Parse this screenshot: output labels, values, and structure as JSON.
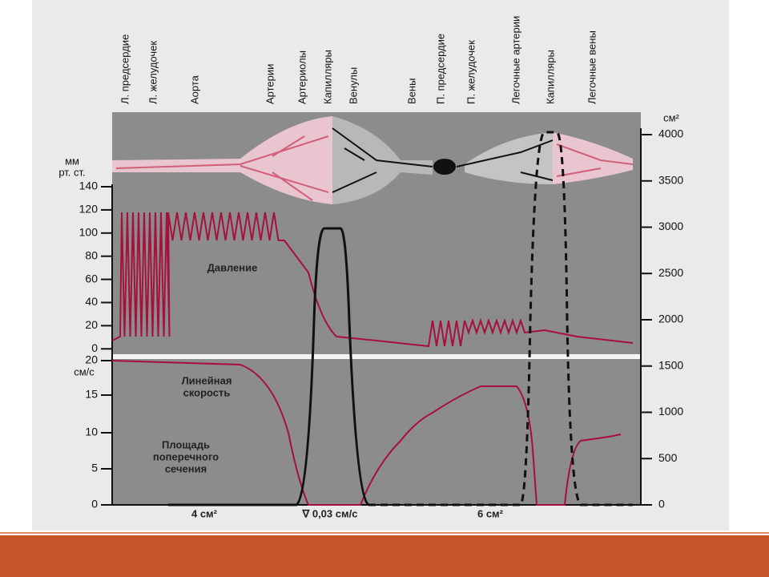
{
  "header_labels": [
    "Л. предсердие",
    "Л. желудочек",
    "Аорта",
    "Артерии",
    "Артериолы",
    "Капилляры",
    "Венулы",
    "Вены",
    "П. предсердие",
    "П. желудочек",
    "Легочные артерии",
    "Капилляры",
    "Легочные вены"
  ],
  "pressure_axis": {
    "unit": [
      "мм",
      "рт. ст."
    ],
    "ticks": [
      "140",
      "120",
      "100",
      "80",
      "60",
      "40",
      "20",
      "0"
    ]
  },
  "velocity_axis": {
    "unit": "см/с",
    "ticks": [
      "20",
      "15",
      "10",
      "5",
      "0"
    ]
  },
  "area_axis": {
    "unit": "см²",
    "ticks": [
      "4000",
      "3500",
      "3000",
      "2500",
      "2000",
      "1500",
      "1000",
      "500",
      "0"
    ]
  },
  "annotations": {
    "pressure": "Давление",
    "velocity": [
      "Линейная",
      "скорость"
    ],
    "area": [
      "Площадь",
      "поперечного",
      "сечения"
    ],
    "bottom": [
      "4 см²",
      "∇ 0,03 см/с",
      "6 см²"
    ]
  }
}
